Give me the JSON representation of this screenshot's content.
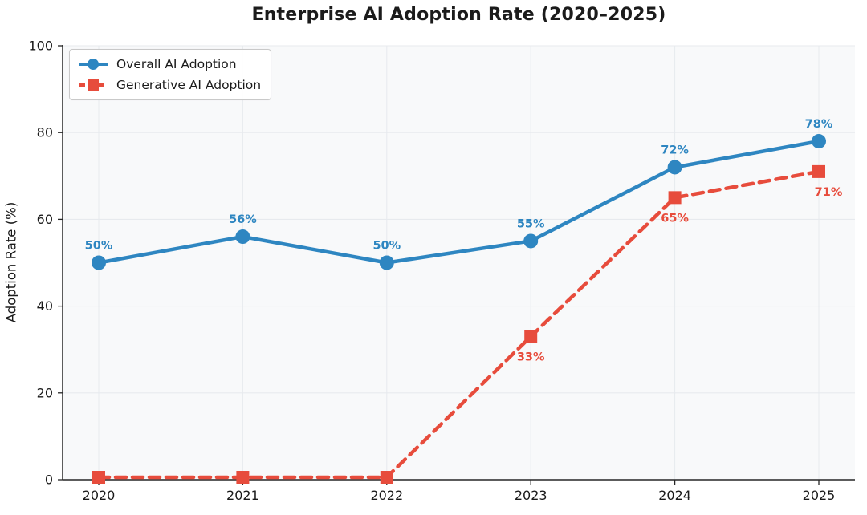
{
  "chart_data": {
    "type": "line",
    "title": "Enterprise AI Adoption Rate (2020–2025)",
    "xlabel": "",
    "ylabel": "Adoption Rate (%)",
    "categories": [
      "2020",
      "2021",
      "2022",
      "2023",
      "2024",
      "2025"
    ],
    "ylim": [
      0,
      100
    ],
    "yticks": [
      0,
      20,
      40,
      60,
      80,
      100
    ],
    "grid": true,
    "legend_position": "upper-left",
    "series": [
      {
        "id": "overall",
        "name": "Overall AI Adoption",
        "values": [
          50,
          56,
          50,
          55,
          72,
          78
        ],
        "point_labels": [
          "50%",
          "56%",
          "50%",
          "55%",
          "72%",
          "78%"
        ],
        "color": "#2E86C1",
        "marker": "circle",
        "line_style": "solid",
        "label_position": "above"
      },
      {
        "id": "genai",
        "name": "Generative AI Adoption",
        "values": [
          0,
          0,
          0,
          33,
          65,
          71
        ],
        "point_labels": [
          "",
          "",
          "",
          "33%",
          "65%",
          "71%"
        ],
        "color": "#E74C3C",
        "marker": "square",
        "line_style": "dashed",
        "label_position": "below"
      }
    ],
    "colors": {
      "figure_bg": "#ffffff",
      "plot_bg": "#f8f9fa",
      "grid": "#e7eaee",
      "spine": "#262626",
      "title": "#1b1b1b",
      "tick": "#1a1a1a"
    }
  }
}
